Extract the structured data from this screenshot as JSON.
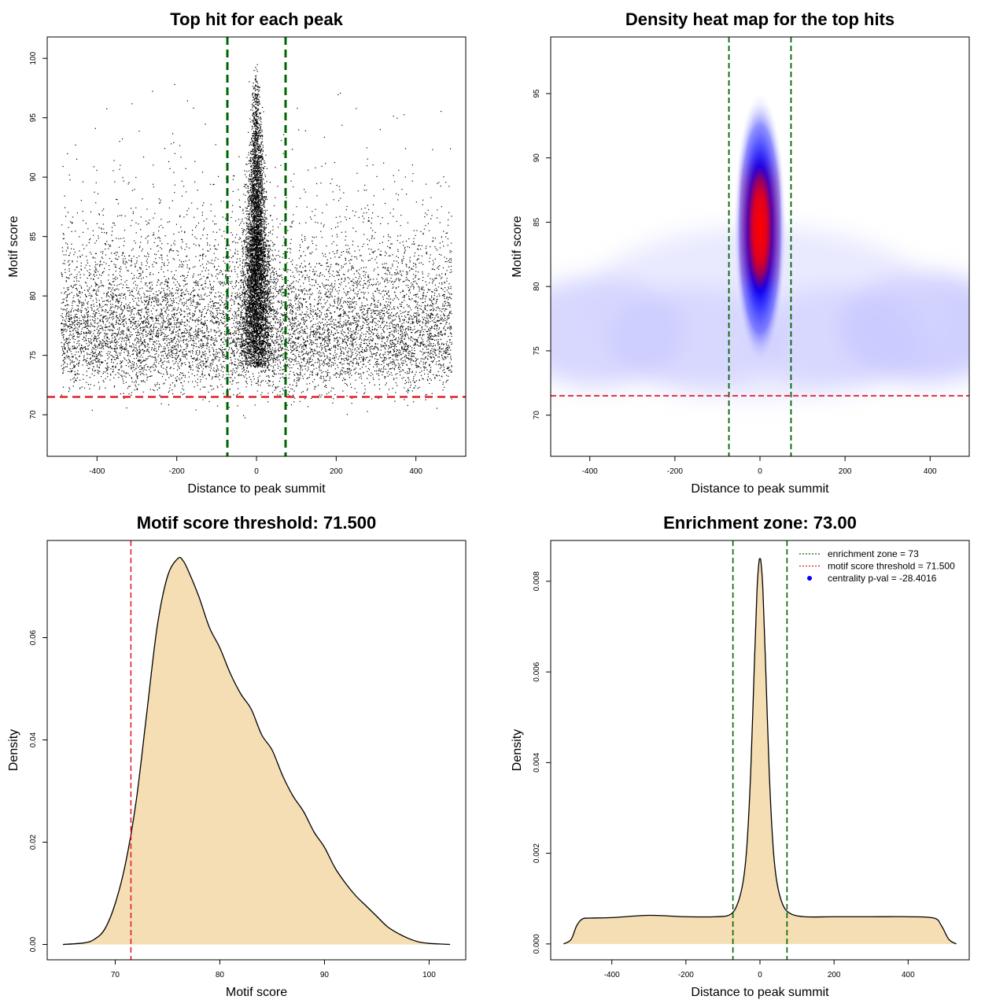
{
  "colors": {
    "zone": "#006400",
    "threshold": "#e0202a",
    "fill": "#f5deb3",
    "points": "#000000",
    "heat_low": "#ffffff",
    "heat_mid": "#0000ff",
    "heat_high": "#ff0000",
    "legend_point": "#0000ff"
  },
  "chart_data": [
    {
      "id": "scatter",
      "type": "scatter",
      "title": "Top hit for each peak",
      "xlabel": "Distance to peak summit",
      "ylabel": "Motif score",
      "xlim": [
        -525,
        525
      ],
      "ylim": [
        66.5,
        101.8
      ],
      "xticks": [
        -400,
        -200,
        0,
        200,
        400
      ],
      "yticks": [
        70,
        75,
        80,
        85,
        90,
        95,
        100
      ],
      "vlines": [
        -73,
        73
      ],
      "hline": 71.5,
      "background_points": {
        "x_range": [
          -490,
          490
        ],
        "y_mode": 76.5,
        "y_range": [
          67,
          99
        ]
      },
      "central_points": {
        "x_center": 0,
        "y_range": [
          74,
          99.5
        ]
      }
    },
    {
      "id": "heatmap",
      "type": "heatmap",
      "title": "Density heat map for the top hits",
      "xlabel": "Distance to peak summit",
      "ylabel": "Motif score",
      "xlim": [
        -492,
        492
      ],
      "ylim": [
        66.8,
        99.4
      ],
      "xticks": [
        -400,
        -200,
        0,
        200,
        400
      ],
      "yticks": [
        70,
        75,
        80,
        85,
        90,
        95
      ],
      "vlines": [
        -73,
        73
      ],
      "hline": 71.5,
      "hotspot": {
        "x": 0,
        "y": 84.5
      }
    },
    {
      "id": "score-density",
      "type": "area",
      "title": "Motif score threshold: 71.500",
      "xlabel": "Motif score",
      "ylabel": "Density",
      "xlim": [
        63.5,
        103.5
      ],
      "ylim": [
        -0.003,
        0.079
      ],
      "xticks": [
        70,
        80,
        90,
        100
      ],
      "yticks": [
        0.0,
        0.02,
        0.04,
        0.06
      ],
      "ytick_labels": [
        "0.00",
        "0.02",
        "0.04",
        "0.06"
      ],
      "vline": 71.5,
      "x": [
        65,
        67,
        68,
        69,
        70,
        71,
        72,
        73,
        74,
        75,
        76,
        76.5,
        77,
        78,
        79,
        80,
        81,
        82,
        83,
        84,
        85,
        86,
        87,
        88,
        89,
        90,
        91,
        92,
        93,
        94,
        95,
        96,
        97,
        98,
        99,
        100,
        101,
        102
      ],
      "y": [
        0,
        0.0003,
        0.001,
        0.003,
        0.008,
        0.016,
        0.028,
        0.045,
        0.062,
        0.072,
        0.0755,
        0.075,
        0.073,
        0.068,
        0.062,
        0.058,
        0.053,
        0.049,
        0.046,
        0.041,
        0.038,
        0.033,
        0.029,
        0.026,
        0.022,
        0.019,
        0.015,
        0.012,
        0.0095,
        0.0075,
        0.0055,
        0.0035,
        0.0022,
        0.0012,
        0.0005,
        0.0002,
        0.0001,
        0
      ]
    },
    {
      "id": "distance-density",
      "type": "area",
      "title": "Enrichment zone: 73.00",
      "xlabel": "Distance to peak summit",
      "ylabel": "Density",
      "xlim": [
        -565,
        565
      ],
      "ylim": [
        -0.00035,
        0.0089
      ],
      "xticks": [
        -400,
        -200,
        0,
        200,
        400
      ],
      "yticks": [
        0.0,
        0.002,
        0.004,
        0.006,
        0.008
      ],
      "ytick_labels": [
        "0.000",
        "0.002",
        "0.004",
        "0.006",
        "0.008"
      ],
      "vlines": [
        -73,
        73
      ],
      "x": [
        -530,
        -510,
        -495,
        -480,
        -460,
        -400,
        -300,
        -200,
        -120,
        -80,
        -60,
        -45,
        -35,
        -25,
        -15,
        -8,
        -3,
        0,
        3,
        8,
        15,
        25,
        35,
        45,
        60,
        80,
        120,
        200,
        300,
        400,
        470,
        490,
        510,
        530
      ],
      "y": [
        0,
        0.0001,
        0.0004,
        0.00055,
        0.00057,
        0.00058,
        0.00063,
        0.0006,
        0.0006,
        0.00065,
        0.0009,
        0.0014,
        0.0022,
        0.0038,
        0.0062,
        0.0078,
        0.0084,
        0.0085,
        0.0084,
        0.0078,
        0.0062,
        0.0038,
        0.0022,
        0.0014,
        0.0009,
        0.00068,
        0.0006,
        0.0006,
        0.0006,
        0.0006,
        0.00057,
        0.0004,
        0.0001,
        0
      ],
      "legend": [
        {
          "kind": "dotted-line",
          "color": "#006400",
          "label": "enrichment zone = 73"
        },
        {
          "kind": "dotted-line",
          "color": "#e0202a",
          "label": "motif score threshold = 71.500"
        },
        {
          "kind": "point",
          "color": "#0000ff",
          "label": "centrality p-val = -28.4016"
        }
      ]
    }
  ]
}
